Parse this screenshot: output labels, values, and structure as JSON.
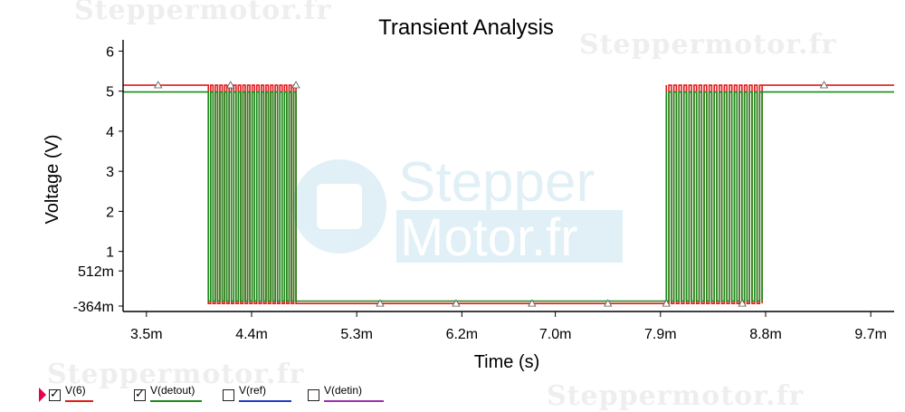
{
  "watermarks": [
    "Steppermotor.fr",
    "Steppermotor.fr",
    "Steppermotor.fr",
    "Steppermotor.fr"
  ],
  "logo_text": [
    "Stepper",
    "Motor.fr"
  ],
  "legend": [
    {
      "label": "V(6)",
      "checked": true,
      "check_glyph": "✓",
      "color": "#e31a1c"
    },
    {
      "label": "V(detout)",
      "checked": true,
      "check_glyph": "✓",
      "color": "#1a8a1a"
    },
    {
      "label": "V(ref)",
      "checked": false,
      "check_glyph": "",
      "color": "#1f3fbf"
    },
    {
      "label": "V(detin)",
      "checked": false,
      "check_glyph": "",
      "color": "#9b30b0"
    }
  ],
  "chart_data": {
    "type": "line",
    "title": "Transient Analysis",
    "xlabel": "Time (s)",
    "ylabel": "Voltage (V)",
    "xlim": [
      3.3,
      9.9
    ],
    "ylim": [
      -0.5,
      6.1
    ],
    "x_ticks": [
      3.5,
      4.4,
      5.3,
      6.2,
      7.0,
      7.9,
      8.8,
      9.7
    ],
    "x_tick_labels": [
      "3.5m",
      "4.4m",
      "5.3m",
      "6.2m",
      "7.0m",
      "7.9m",
      "8.8m",
      "9.7m"
    ],
    "y_ticks": [
      -0.364,
      0.512,
      1,
      2,
      3,
      4,
      5,
      6
    ],
    "y_tick_labels": [
      "-364m",
      "512m",
      "1",
      "2",
      "3",
      "4",
      "5",
      "6"
    ],
    "series": [
      {
        "name": "V(6)",
        "color": "#e31a1c",
        "high": 5.15,
        "low": -0.3,
        "segments": [
          {
            "type": "level",
            "x0": 3.3,
            "x1": 4.03,
            "level": "high"
          },
          {
            "type": "pulses",
            "x0": 4.03,
            "x1": 4.78,
            "count": 19
          },
          {
            "type": "level",
            "x0": 4.78,
            "x1": 7.95,
            "level": "low"
          },
          {
            "type": "pulses",
            "x0": 7.95,
            "x1": 8.77,
            "count": 19
          },
          {
            "type": "level",
            "x0": 8.77,
            "x1": 9.9,
            "level": "high"
          }
        ]
      },
      {
        "name": "V(detout)",
        "color": "#1a8a1a",
        "high": 4.98,
        "low": -0.24,
        "segments": [
          {
            "type": "level",
            "x0": 3.3,
            "x1": 4.03,
            "level": "high"
          },
          {
            "type": "pulses",
            "x0": 4.03,
            "x1": 4.78,
            "count": 19
          },
          {
            "type": "level",
            "x0": 4.78,
            "x1": 7.95,
            "level": "low"
          },
          {
            "type": "pulses",
            "x0": 7.95,
            "x1": 8.77,
            "count": 19
          },
          {
            "type": "level",
            "x0": 8.77,
            "x1": 9.9,
            "level": "high"
          }
        ]
      }
    ],
    "markers": [
      {
        "x": 3.6,
        "y": 5.15
      },
      {
        "x": 4.22,
        "y": 5.15
      },
      {
        "x": 4.78,
        "y": 5.15
      },
      {
        "x": 5.5,
        "y": -0.3
      },
      {
        "x": 6.15,
        "y": -0.3
      },
      {
        "x": 6.8,
        "y": -0.3
      },
      {
        "x": 7.45,
        "y": -0.3
      },
      {
        "x": 7.95,
        "y": -0.3
      },
      {
        "x": 8.6,
        "y": -0.3
      },
      {
        "x": 9.3,
        "y": 5.15
      }
    ],
    "grid": false
  }
}
